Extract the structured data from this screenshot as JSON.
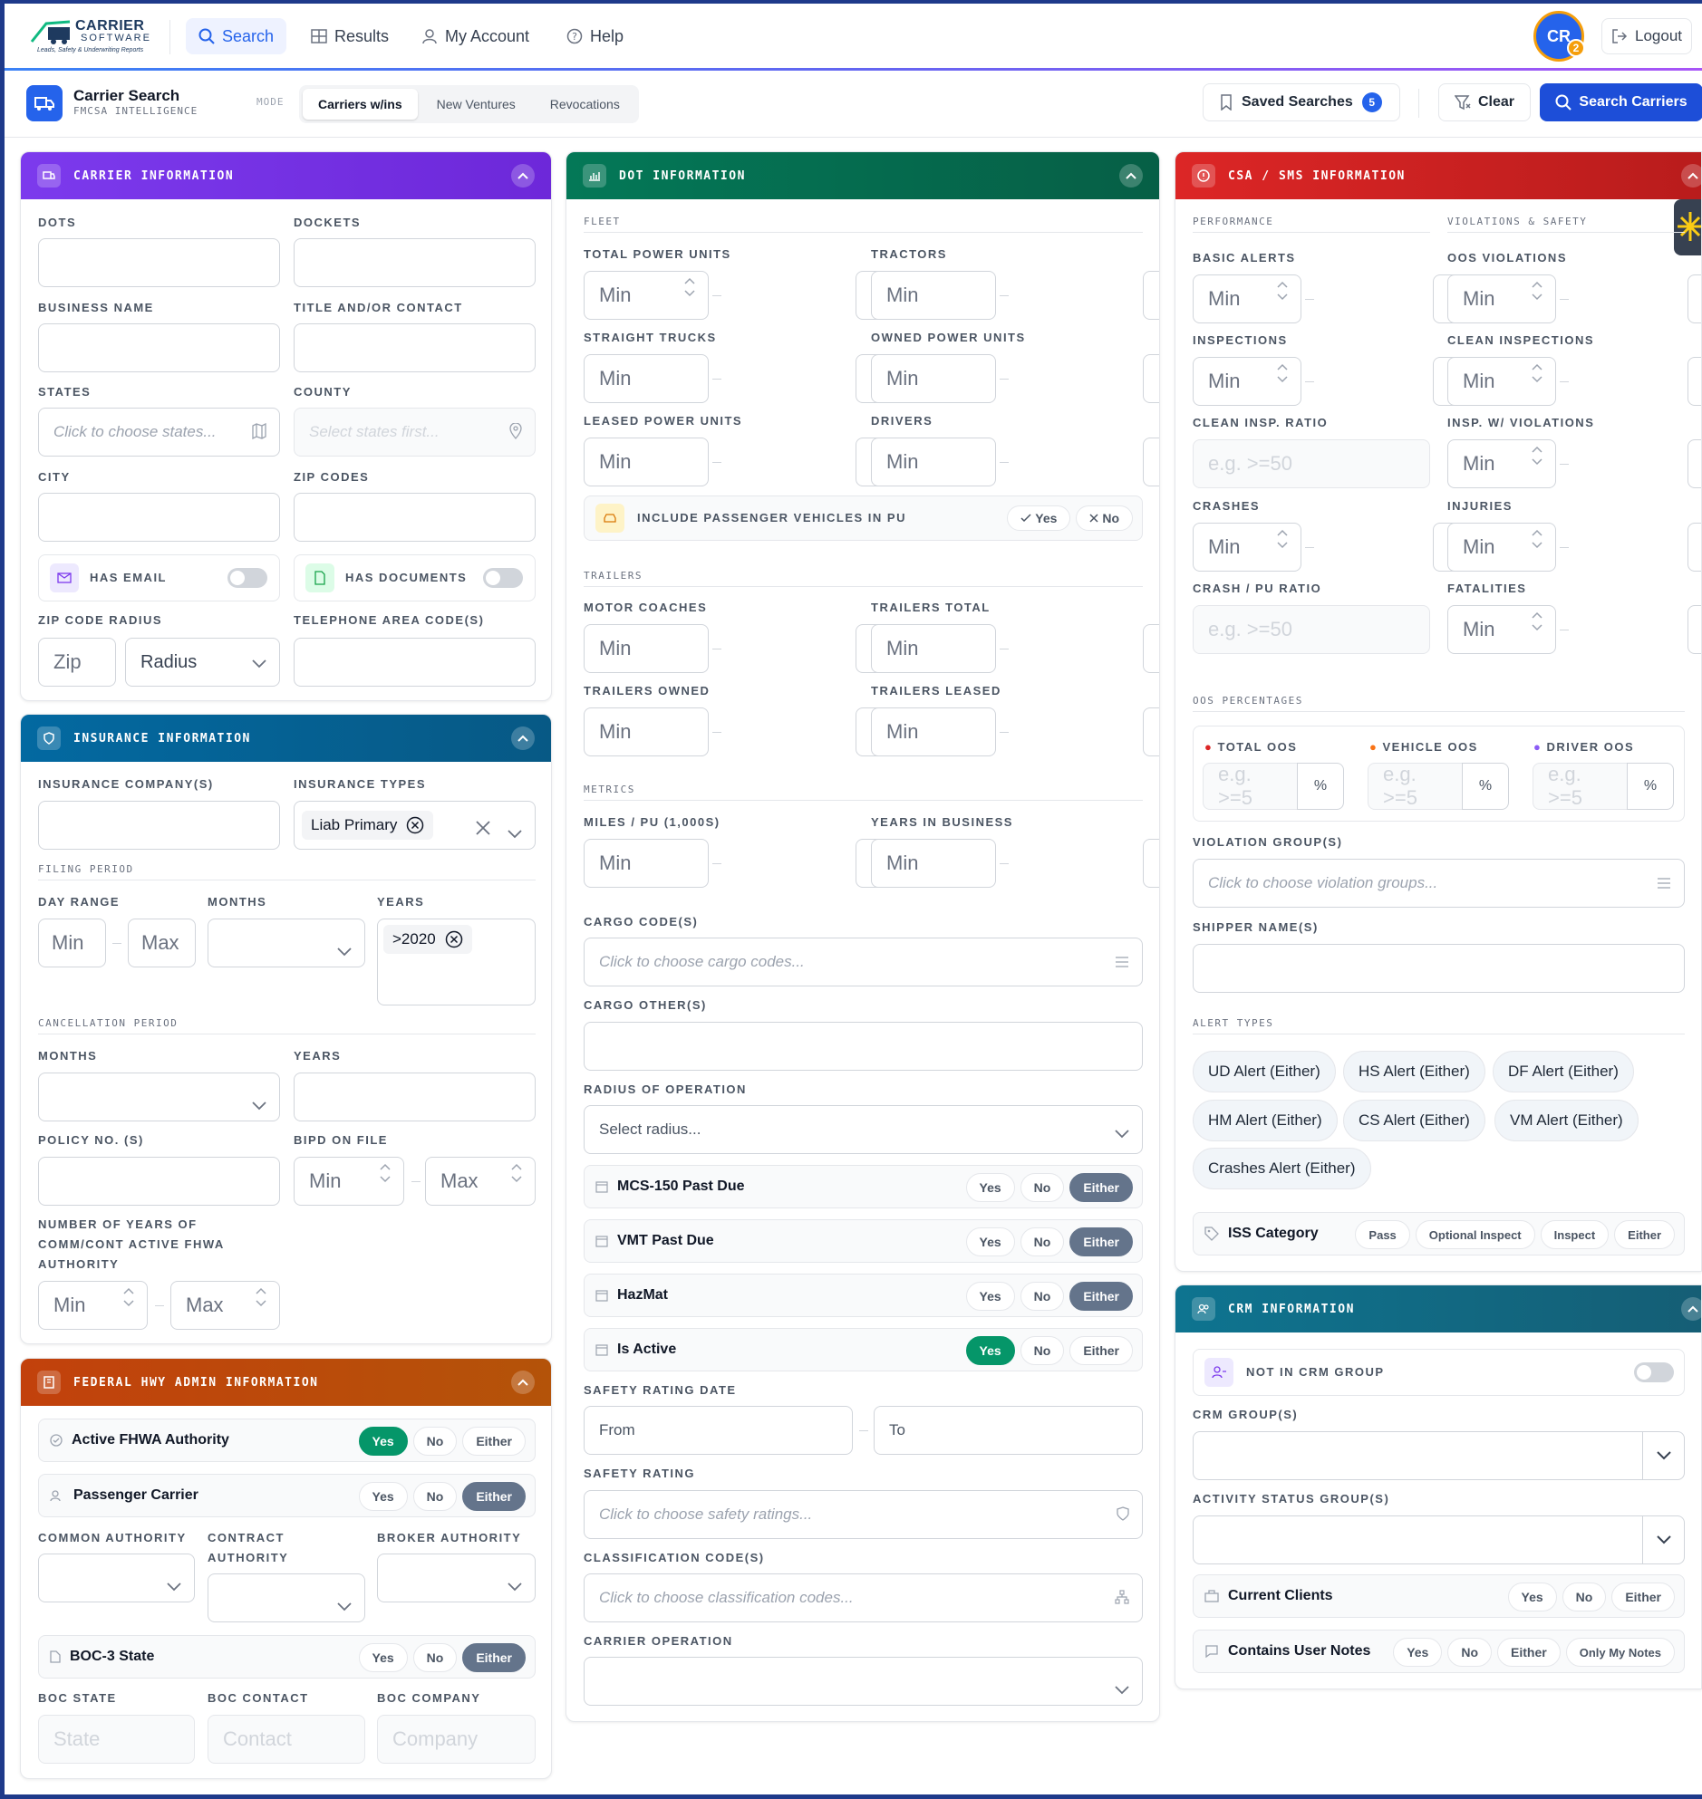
{
  "nav": {
    "logo_line1": "CARRIER",
    "logo_line2": "SOFTWARE",
    "logo_line3": "Leads, Safety & Underwriting Reports",
    "search": "Search",
    "results": "Results",
    "account": "My Account",
    "help": "Help",
    "avatar": "CR",
    "avatar_badge": "2",
    "logout": "Logout"
  },
  "sub": {
    "title": "Carrier Search",
    "subtitle": "FMCSA INTELLIGENCE",
    "mode": "MODE",
    "modes": [
      "Carriers w/ins",
      "New Ventures",
      "Revocations"
    ],
    "saved": "Saved Searches",
    "saved_count": "5",
    "clear": "Clear",
    "search": "Search Carriers"
  },
  "common": {
    "min": "Min",
    "max": "Max",
    "yes": "Yes",
    "no": "No",
    "either": "Either",
    "eg": "e.g. >=50",
    "eg_short": "e.g. >=5",
    "pct": "%"
  },
  "carrier": {
    "title": "CARRIER INFORMATION",
    "dots": "DOTS",
    "dockets": "DOCKETS",
    "business": "BUSINESS NAME",
    "title_contact": "TITLE AND/OR CONTACT",
    "states": "STATES",
    "county": "COUNTY",
    "states_ph": "Click to choose states...",
    "county_ph": "Select states first...",
    "city": "CITY",
    "zip": "ZIP CODES",
    "has_email": "HAS EMAIL",
    "has_docs": "HAS DOCUMENTS",
    "zip_radius": "ZIP CODE RADIUS",
    "phone": "TELEPHONE AREA CODE(S)",
    "zip_ph": "Zip",
    "radius_ph": "Radius"
  },
  "insurance": {
    "title": "INSURANCE INFORMATION",
    "company": "INSURANCE COMPANY(S)",
    "types": "INSURANCE TYPES",
    "type_chip": "Liab Primary",
    "filing": "FILING PERIOD",
    "day_range": "DAY RANGE",
    "months": "MONTHS",
    "years": "YEARS",
    "year_chip": ">2020",
    "cancel": "CANCELLATION PERIOD",
    "policy": "POLICY NO. (S)",
    "bipd": "BIPD ON FILE",
    "num_years": "NUMBER OF YEARS OF COMM/CONT ACTIVE FHWA AUTHORITY"
  },
  "fhwa": {
    "title": "FEDERAL HWY ADMIN INFORMATION",
    "active": "Active FHWA Authority",
    "passenger": "Passenger Carrier",
    "common": "COMMON AUTHORITY",
    "contract": "CONTRACT AUTHORITY",
    "broker": "BROKER AUTHORITY",
    "boc3": "BOC-3 State",
    "boc_state": "BOC STATE",
    "boc_contact": "BOC CONTACT",
    "boc_company": "BOC COMPANY",
    "state_ph": "State",
    "contact_ph": "Contact",
    "company_ph": "Company"
  },
  "dot": {
    "title": "DOT INFORMATION",
    "fleet": "FLEET",
    "tpu": "TOTAL POWER UNITS",
    "tractors": "TRACTORS",
    "straight": "STRAIGHT TRUCKS",
    "owned_pu": "OWNED POWER UNITS",
    "leased_pu": "LEASED POWER UNITS",
    "drivers": "DRIVERS",
    "passenger": "INCLUDE PASSENGER VEHICLES IN PU",
    "trailers": "TRAILERS",
    "motor": "MOTOR COACHES",
    "trailers_total": "TRAILERS TOTAL",
    "trailers_owned": "TRAILERS OWNED",
    "trailers_leased": "TRAILERS LEASED",
    "metrics": "METRICS",
    "miles": "MILES / PU (1,000S)",
    "years_bus": "YEARS IN BUSINESS",
    "cargo": "CARGO CODE(S)",
    "cargo_ph": "Click to choose cargo codes...",
    "cargo_other": "CARGO OTHER(S)",
    "radius": "RADIUS OF OPERATION",
    "radius_ph": "Select radius...",
    "mcs": "MCS-150 Past Due",
    "vmt": "VMT Past Due",
    "hazmat": "HazMat",
    "active": "Is Active",
    "srd": "SAFETY RATING DATE",
    "from": "From",
    "to": "To",
    "sr": "SAFETY RATING",
    "sr_ph": "Click to choose safety ratings...",
    "class": "CLASSIFICATION CODE(S)",
    "class_ph": "Click to choose classification codes...",
    "op": "CARRIER OPERATION"
  },
  "csa": {
    "title": "CSA / SMS INFORMATION",
    "perf": "PERFORMANCE",
    "viol": "VIOLATIONS & SAFETY",
    "basic": "BASIC ALERTS",
    "oos": "OOS VIOLATIONS",
    "insp": "INSPECTIONS",
    "clean": "CLEAN INSPECTIONS",
    "ratio": "CLEAN INSP. RATIO",
    "insp_v": "INSP. W/ VIOLATIONS",
    "crashes": "CRASHES",
    "injuries": "INJURIES",
    "crash_pu": "CRASH / PU RATIO",
    "fatal": "FATALITIES",
    "oos_pct": "OOS PERCENTAGES",
    "total_oos": "TOTAL OOS",
    "vehicle_oos": "VEHICLE OOS",
    "driver_oos": "DRIVER OOS",
    "vgroup": "VIOLATION GROUP(S)",
    "vgroup_ph": "Click to choose violation groups...",
    "shipper": "SHIPPER NAME(S)",
    "alerts": "ALERT TYPES",
    "alert_items": [
      "UD Alert (Either)",
      "HS Alert (Either)",
      "DF Alert (Either)",
      "HM Alert (Either)",
      "CS Alert (Either)",
      "VM Alert (Either)",
      "Crashes Alert (Either)"
    ],
    "iss": "ISS Category",
    "iss_opts": [
      "Pass",
      "Optional Inspect",
      "Inspect",
      "Either"
    ]
  },
  "crm": {
    "title": "CRM INFORMATION",
    "not_in": "NOT IN CRM GROUP",
    "groups": "CRM GROUP(S)",
    "activity": "ACTIVITY STATUS GROUP(S)",
    "current": "Current Clients",
    "notes": "Contains User Notes",
    "only_mine": "Only My Notes"
  },
  "colors": {
    "carrier": "#7c3aed",
    "insurance": "#0369a1",
    "fhwa": "#c2410c",
    "dot": "#047857",
    "csa": "#dc2626",
    "crm": "#0e7490",
    "accent": "#2563eb"
  }
}
